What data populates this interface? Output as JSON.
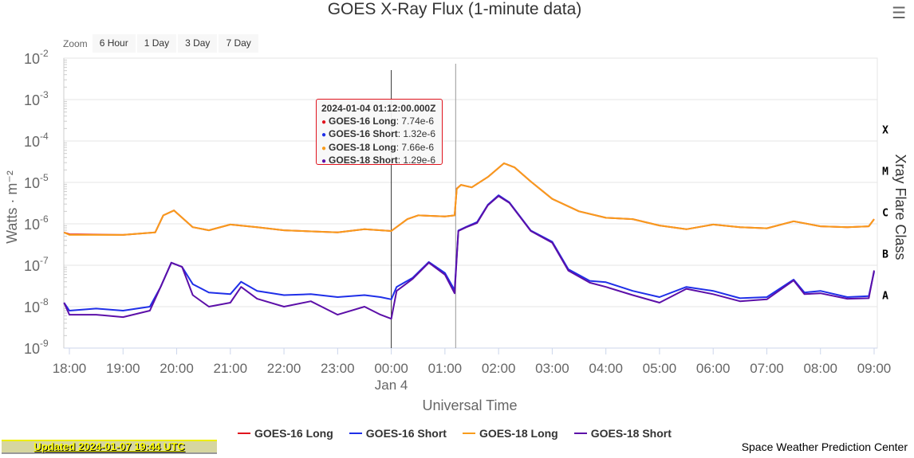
{
  "menu_icon": "hamburger-menu-icon",
  "zoom": {
    "label": "Zoom",
    "buttons": [
      "6 Hour",
      "1 Day",
      "3 Day",
      "7 Day"
    ]
  },
  "tooltip": {
    "time": "2024-01-04 01:12:00.000Z",
    "rows": [
      {
        "name": "GOES-16 Long",
        "value": "7.74e-6",
        "color": "#e0141e"
      },
      {
        "name": "GOES-16 Short",
        "value": "1.32e-6",
        "color": "#1f2fe8"
      },
      {
        "name": "GOES-18 Long",
        "value": "7.66e-6",
        "color": "#f89c1c"
      },
      {
        "name": "GOES-18 Short",
        "value": "1.29e-6",
        "color": "#5c0fa8"
      }
    ]
  },
  "updated": "Updated 2024-01-07 19:44 UTC",
  "credit": "Space Weather Prediction Center",
  "chart_data": {
    "type": "line",
    "title": "GOES X-Ray Flux (1-minute data)",
    "xlabel": "Universal Time",
    "ylabel": "Watts · m⁻²",
    "ylabel_right": "Xray Flare Class",
    "x_unit": "hours since 2024-01-03 18:00 UTC",
    "xlim": [
      -0.1,
      15.05
    ],
    "ylim": [
      1e-09,
      0.01
    ],
    "yscale": "log",
    "x_ticks": [
      {
        "x": 0,
        "label": "18:00"
      },
      {
        "x": 1,
        "label": "19:00"
      },
      {
        "x": 2,
        "label": "20:00"
      },
      {
        "x": 3,
        "label": "21:00"
      },
      {
        "x": 4,
        "label": "22:00"
      },
      {
        "x": 5,
        "label": "23:00"
      },
      {
        "x": 6,
        "label": "00:00",
        "sub": "Jan 4"
      },
      {
        "x": 7,
        "label": "01:00"
      },
      {
        "x": 8,
        "label": "02:00"
      },
      {
        "x": 9,
        "label": "03:00"
      },
      {
        "x": 10,
        "label": "04:00"
      },
      {
        "x": 11,
        "label": "05:00"
      },
      {
        "x": 12,
        "label": "06:00"
      },
      {
        "x": 13,
        "label": "07:00"
      },
      {
        "x": 14,
        "label": "08:00"
      },
      {
        "x": 15,
        "label": "09:00"
      }
    ],
    "y_ticks": [
      {
        "v": 0.01,
        "label": "10",
        "exp": "-2"
      },
      {
        "v": 0.001,
        "label": "10",
        "exp": "-3"
      },
      {
        "v": 0.0001,
        "label": "10",
        "exp": "-4"
      },
      {
        "v": 1e-05,
        "label": "10",
        "exp": "-5"
      },
      {
        "v": 1e-06,
        "label": "10",
        "exp": "-6"
      },
      {
        "v": 1e-07,
        "label": "10",
        "exp": "-7"
      },
      {
        "v": 1e-08,
        "label": "10",
        "exp": "-8"
      },
      {
        "v": 1e-09,
        "label": "10",
        "exp": "-9"
      }
    ],
    "flare_classes": [
      {
        "label": "X",
        "v": 0.0002
      },
      {
        "label": "M",
        "v": 2e-05
      },
      {
        "label": "C",
        "v": 2e-06
      },
      {
        "label": "B",
        "v": 2e-07
      },
      {
        "label": "A",
        "v": 2e-08
      }
    ],
    "crosshair_x": 7.2,
    "plotline_x": 6.0,
    "series": [
      {
        "name": "GOES-16 Long",
        "color": "#e0141e",
        "points": [
          [
            -0.1,
            6.2e-07
          ],
          [
            0,
            5.6e-07
          ],
          [
            1,
            5.4e-07
          ],
          [
            1.6,
            6.2e-07
          ],
          [
            1.75,
            1.6e-06
          ],
          [
            1.95,
            2.1e-06
          ],
          [
            2.3,
            8.3e-07
          ],
          [
            2.6,
            7e-07
          ],
          [
            3,
            9.6e-07
          ],
          [
            3.5,
            8.3e-07
          ],
          [
            4,
            7e-07
          ],
          [
            5,
            6.2e-07
          ],
          [
            5.5,
            7.4e-07
          ],
          [
            6,
            6.7e-07
          ],
          [
            6.3,
            1.3e-06
          ],
          [
            6.5,
            1.6e-06
          ],
          [
            7,
            1.5e-06
          ],
          [
            7.18,
            1.6e-06
          ],
          [
            7.22,
            7.1e-06
          ],
          [
            7.3,
            8.7e-06
          ],
          [
            7.5,
            7.6e-06
          ],
          [
            7.8,
            1.35e-05
          ],
          [
            8.1,
            2.9e-05
          ],
          [
            8.3,
            2.3e-05
          ],
          [
            8.6,
            1.05e-05
          ],
          [
            9,
            4e-06
          ],
          [
            9.5,
            2e-06
          ],
          [
            10,
            1.4e-06
          ],
          [
            10.5,
            1.3e-06
          ],
          [
            11,
            9.1e-07
          ],
          [
            11.5,
            7.4e-07
          ],
          [
            12,
            9.6e-07
          ],
          [
            12.5,
            8.3e-07
          ],
          [
            13,
            7.8e-07
          ],
          [
            13.5,
            1.15e-06
          ],
          [
            14,
            8.7e-07
          ],
          [
            14.5,
            8.3e-07
          ],
          [
            14.9,
            8.7e-07
          ],
          [
            15,
            1.3e-06
          ]
        ]
      },
      {
        "name": "GOES-16 Short",
        "color": "#1f2fe8",
        "points": [
          [
            -0.1,
            1.25e-08
          ],
          [
            0,
            8e-09
          ],
          [
            0.5,
            9e-09
          ],
          [
            1,
            8e-09
          ],
          [
            1.5,
            1e-08
          ],
          [
            1.7,
            3e-08
          ],
          [
            1.9,
            1.15e-07
          ],
          [
            2.1,
            9.1e-08
          ],
          [
            2.3,
            3.5e-08
          ],
          [
            2.6,
            2.2e-08
          ],
          [
            3,
            2e-08
          ],
          [
            3.2,
            4e-08
          ],
          [
            3.5,
            2.4e-08
          ],
          [
            4,
            1.9e-08
          ],
          [
            4.5,
            2e-08
          ],
          [
            5,
            1.7e-08
          ],
          [
            5.5,
            1.9e-08
          ],
          [
            5.8,
            1.7e-08
          ],
          [
            6,
            1.5e-08
          ],
          [
            6.1,
            3e-08
          ],
          [
            6.4,
            5e-08
          ],
          [
            6.7,
            1.2e-07
          ],
          [
            7,
            6.5e-08
          ],
          [
            7.18,
            2.5e-08
          ],
          [
            7.25,
            6.9e-07
          ],
          [
            7.4,
            8.5e-07
          ],
          [
            7.6,
            1.1e-06
          ],
          [
            7.8,
            2.9e-06
          ],
          [
            8.0,
            4.9e-06
          ],
          [
            8.2,
            3.3e-06
          ],
          [
            8.6,
            6.9e-07
          ],
          [
            9,
            3.7e-07
          ],
          [
            9.3,
            8e-08
          ],
          [
            9.7,
            4.2e-08
          ],
          [
            10,
            3.9e-08
          ],
          [
            10.5,
            2.4e-08
          ],
          [
            11,
            1.7e-08
          ],
          [
            11.5,
            3e-08
          ],
          [
            12,
            2.4e-08
          ],
          [
            12.5,
            1.6e-08
          ],
          [
            13,
            1.7e-08
          ],
          [
            13.5,
            4.5e-08
          ],
          [
            13.7,
            2.2e-08
          ],
          [
            14,
            2.4e-08
          ],
          [
            14.5,
            1.7e-08
          ],
          [
            14.9,
            1.8e-08
          ],
          [
            15,
            7e-08
          ]
        ]
      },
      {
        "name": "GOES-18 Long",
        "color": "#f89c1c",
        "points": [
          [
            -0.1,
            6.2e-07
          ],
          [
            0,
            5.4e-07
          ],
          [
            1,
            5.4e-07
          ],
          [
            1.6,
            6.2e-07
          ],
          [
            1.75,
            1.6e-06
          ],
          [
            1.95,
            2.1e-06
          ],
          [
            2.3,
            8.3e-07
          ],
          [
            2.6,
            7e-07
          ],
          [
            3,
            9.6e-07
          ],
          [
            3.5,
            8.3e-07
          ],
          [
            4,
            7e-07
          ],
          [
            5,
            6.2e-07
          ],
          [
            5.5,
            7.4e-07
          ],
          [
            6,
            6.7e-07
          ],
          [
            6.3,
            1.3e-06
          ],
          [
            6.5,
            1.6e-06
          ],
          [
            7,
            1.5e-06
          ],
          [
            7.18,
            1.6e-06
          ],
          [
            7.22,
            7e-06
          ],
          [
            7.3,
            8.7e-06
          ],
          [
            7.5,
            7.6e-06
          ],
          [
            7.8,
            1.35e-05
          ],
          [
            8.1,
            2.9e-05
          ],
          [
            8.3,
            2.3e-05
          ],
          [
            8.6,
            1.05e-05
          ],
          [
            9,
            4e-06
          ],
          [
            9.5,
            2e-06
          ],
          [
            10,
            1.4e-06
          ],
          [
            10.5,
            1.3e-06
          ],
          [
            11,
            9.1e-07
          ],
          [
            11.5,
            7.4e-07
          ],
          [
            12,
            9.6e-07
          ],
          [
            12.5,
            8.3e-07
          ],
          [
            13,
            7.8e-07
          ],
          [
            13.5,
            1.15e-06
          ],
          [
            14,
            8.7e-07
          ],
          [
            14.5,
            8.3e-07
          ],
          [
            14.9,
            8.7e-07
          ],
          [
            15,
            1.3e-06
          ]
        ]
      },
      {
        "name": "GOES-18 Short",
        "color": "#5c0fa8",
        "points": [
          [
            -0.1,
            1.25e-08
          ],
          [
            0,
            6.4e-09
          ],
          [
            0.5,
            6.4e-09
          ],
          [
            1,
            5.6e-09
          ],
          [
            1.5,
            8e-09
          ],
          [
            1.7,
            3e-08
          ],
          [
            1.9,
            1.15e-07
          ],
          [
            2.1,
            9.1e-08
          ],
          [
            2.3,
            1.9e-08
          ],
          [
            2.6,
            1e-08
          ],
          [
            3,
            1.25e-08
          ],
          [
            3.2,
            3e-08
          ],
          [
            3.5,
            1.55e-08
          ],
          [
            4,
            1e-08
          ],
          [
            4.5,
            1.35e-08
          ],
          [
            5,
            6.4e-09
          ],
          [
            5.5,
            1e-08
          ],
          [
            5.8,
            6.4e-09
          ],
          [
            6,
            5.1e-09
          ],
          [
            6.1,
            2.4e-08
          ],
          [
            6.4,
            4.7e-08
          ],
          [
            6.7,
            1.15e-07
          ],
          [
            7,
            5.9e-08
          ],
          [
            7.18,
            2.1e-08
          ],
          [
            7.25,
            6.7e-07
          ],
          [
            7.4,
            8.3e-07
          ],
          [
            7.6,
            1.05e-06
          ],
          [
            7.8,
            2.8e-06
          ],
          [
            8.0,
            4.7e-06
          ],
          [
            8.2,
            3.2e-06
          ],
          [
            8.6,
            6.7e-07
          ],
          [
            9,
            3.5e-07
          ],
          [
            9.3,
            7.4e-08
          ],
          [
            9.7,
            3.8e-08
          ],
          [
            10,
            3e-08
          ],
          [
            10.5,
            1.9e-08
          ],
          [
            11,
            1.25e-08
          ],
          [
            11.5,
            2.7e-08
          ],
          [
            12,
            2e-08
          ],
          [
            12.5,
            1.35e-08
          ],
          [
            13,
            1.5e-08
          ],
          [
            13.5,
            4.3e-08
          ],
          [
            13.7,
            2e-08
          ],
          [
            14,
            2.1e-08
          ],
          [
            14.5,
            1.55e-08
          ],
          [
            14.9,
            1.6e-08
          ],
          [
            15,
            7.5e-08
          ]
        ]
      }
    ]
  }
}
